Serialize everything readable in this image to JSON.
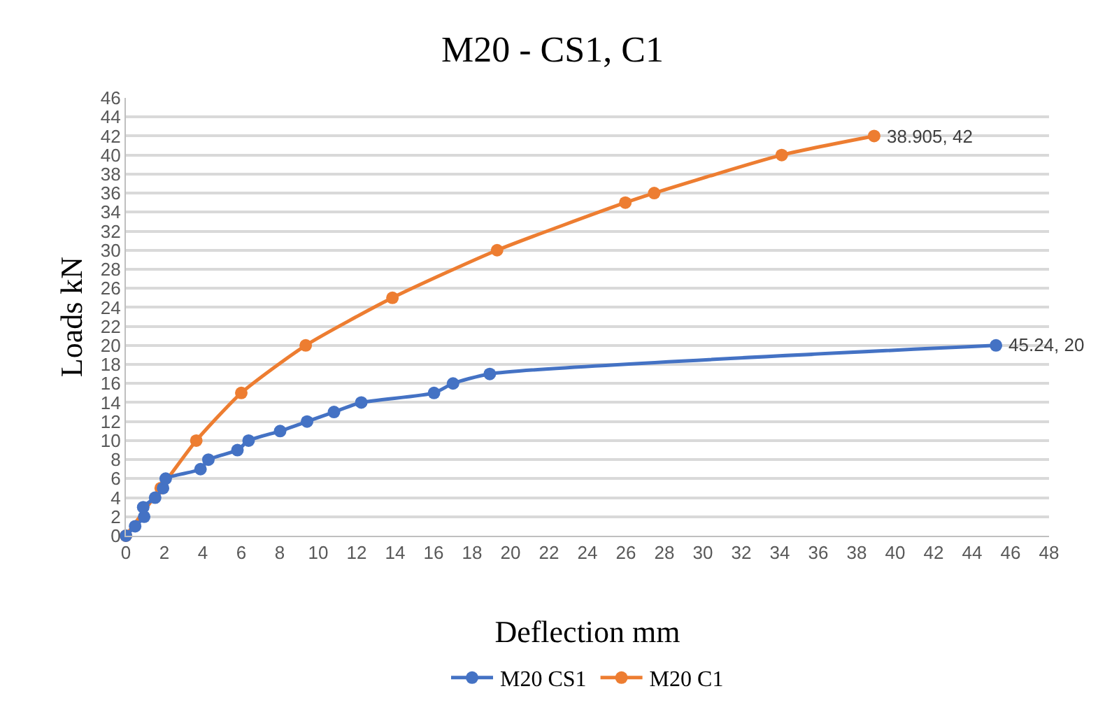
{
  "chart_data": {
    "type": "line",
    "title": "M20 - CS1, C1",
    "xlabel": "Deflection mm",
    "ylabel": "Loads kN",
    "xlim": [
      0,
      48
    ],
    "xticks": [
      0,
      2,
      4,
      6,
      8,
      10,
      12,
      14,
      16,
      18,
      20,
      22,
      24,
      26,
      28,
      30,
      32,
      34,
      36,
      38,
      40,
      42,
      44,
      46,
      48
    ],
    "ylim": [
      0,
      46
    ],
    "yticks": [
      0,
      2,
      4,
      6,
      8,
      10,
      12,
      14,
      16,
      18,
      20,
      22,
      24,
      26,
      28,
      30,
      32,
      34,
      36,
      38,
      40,
      42,
      44,
      46
    ],
    "grid": "y",
    "legend": "bottom",
    "marker": "circle",
    "line_style": "solid",
    "series": [
      {
        "name": "M20 CS1",
        "color": "#4472c4",
        "x": [
          0,
          0.48,
          0.95,
          0.9,
          1.52,
          1.93,
          2.07,
          3.88,
          4.29,
          5.8,
          6.38,
          8.02,
          9.42,
          10.82,
          12.24,
          16.02,
          17.01,
          18.92,
          45.24
        ],
        "values": [
          0,
          1,
          2,
          3,
          4,
          5,
          6,
          7,
          8,
          9,
          10,
          11,
          12,
          13,
          14,
          15,
          16,
          17,
          20
        ]
      },
      {
        "name": "M20 C1",
        "color": "#ed7d31",
        "x": [
          0,
          1.81,
          3.66,
          6.0,
          9.35,
          13.86,
          19.3,
          25.97,
          27.47,
          34.1,
          38.905
        ],
        "values": [
          0,
          5,
          10,
          15,
          20,
          25,
          30,
          35,
          36,
          40,
          42
        ]
      }
    ],
    "annotations": [
      {
        "text": "45.24, 20",
        "x": 45.24,
        "y": 20
      },
      {
        "text": "38.905, 42",
        "x": 38.905,
        "y": 42
      }
    ]
  }
}
